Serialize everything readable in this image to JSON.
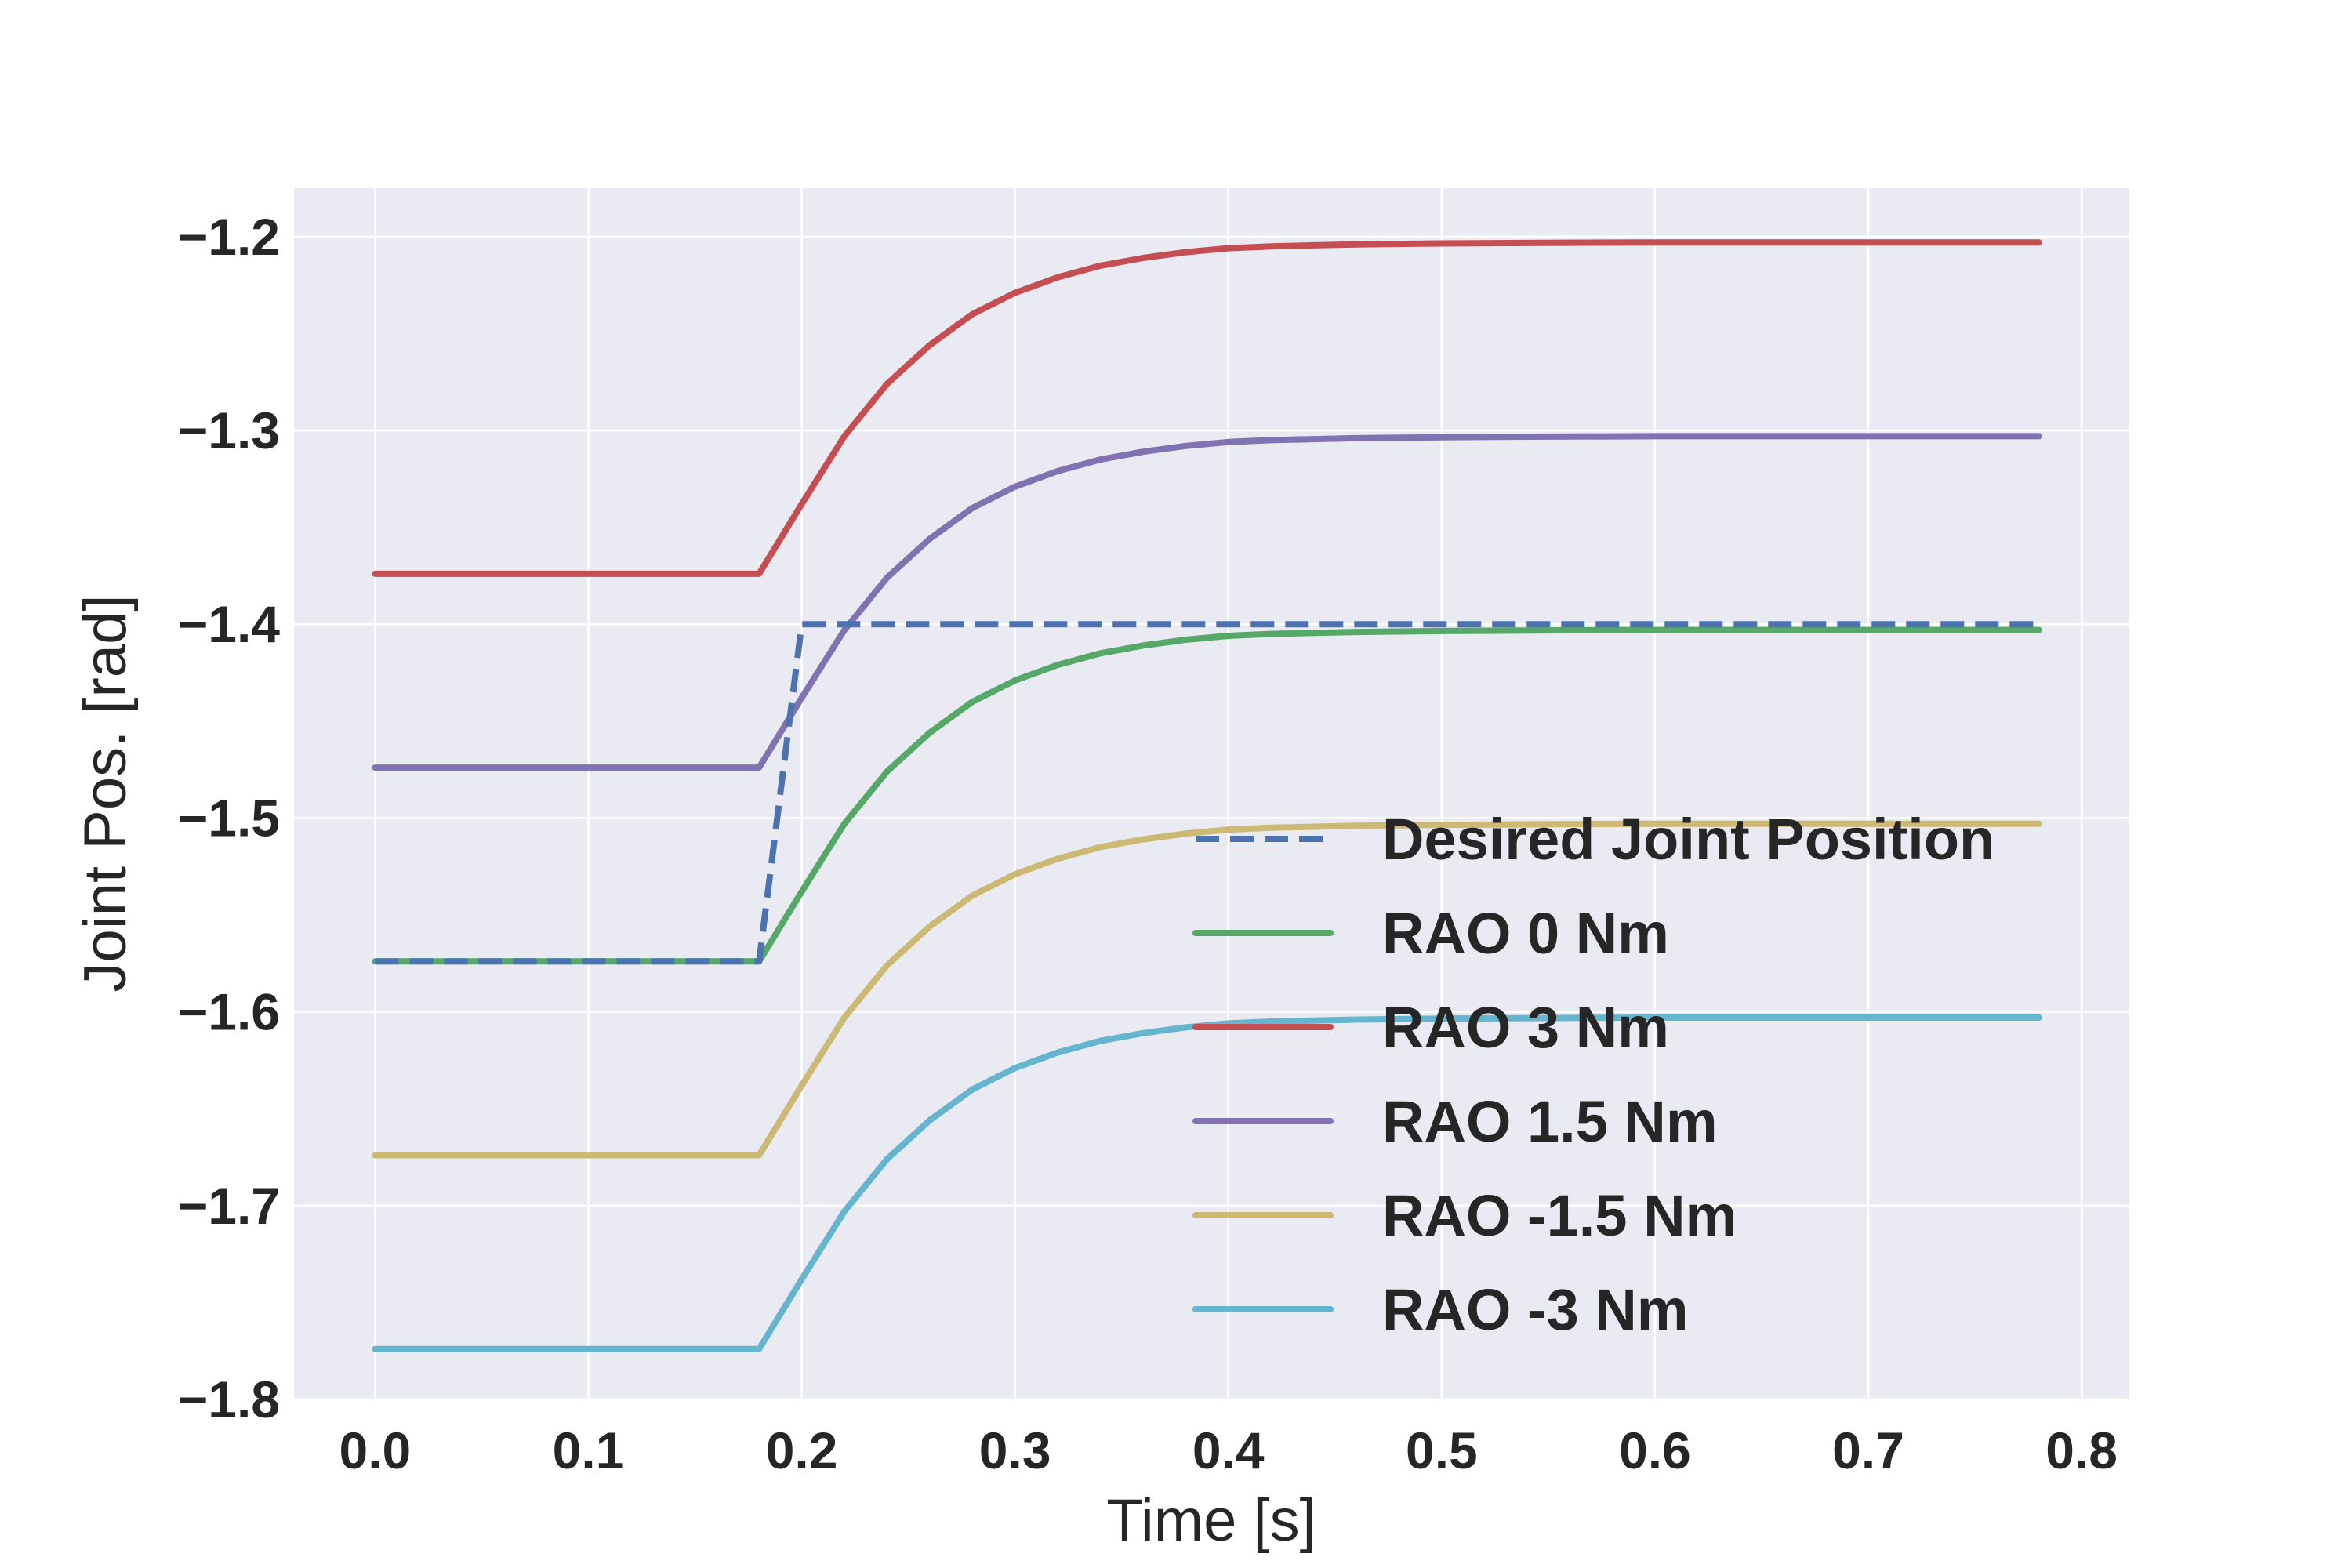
{
  "chart_data": {
    "type": "line",
    "title": "",
    "xlabel": "Time [s]",
    "ylabel": "Joint Pos. [rad]",
    "xlim": [
      -0.038,
      0.822
    ],
    "ylim": [
      -1.8,
      -1.175
    ],
    "xticks": [
      0.0,
      0.1,
      0.2,
      0.3,
      0.4,
      0.5,
      0.6,
      0.7,
      0.8
    ],
    "xtick_labels": [
      "0.0",
      "0.1",
      "0.2",
      "0.3",
      "0.4",
      "0.5",
      "0.6",
      "0.7",
      "0.8"
    ],
    "yticks": [
      -1.8,
      -1.7,
      -1.6,
      -1.5,
      -1.4,
      -1.3,
      -1.2
    ],
    "ytick_labels": [
      "−1.8",
      "−1.7",
      "−1.6",
      "−1.5",
      "−1.4",
      "−1.3",
      "−1.2"
    ],
    "grid": true,
    "background": "#eaeaf2",
    "legend_position": "lower-right",
    "series": [
      {
        "name": "Desired Joint Position",
        "color": "#4c72b0",
        "style": "dashed",
        "x": [
          0.0,
          0.18,
          0.2,
          0.78
        ],
        "y": [
          -1.574,
          -1.574,
          -1.4,
          -1.4
        ]
      },
      {
        "name": "RAO 0 Nm",
        "color": "#55a868",
        "style": "solid",
        "x": [
          0.0,
          0.18,
          0.2,
          0.22,
          0.24,
          0.26,
          0.28,
          0.3,
          0.32,
          0.34,
          0.36,
          0.38,
          0.4,
          0.42,
          0.44,
          0.46,
          0.5,
          0.55,
          0.6,
          0.65,
          0.7,
          0.78
        ],
        "y": [
          -1.574,
          -1.574,
          -1.538,
          -1.503,
          -1.476,
          -1.456,
          -1.44,
          -1.429,
          -1.421,
          -1.415,
          -1.411,
          -1.408,
          -1.406,
          -1.405,
          -1.4045,
          -1.404,
          -1.4035,
          -1.4032,
          -1.403,
          -1.403,
          -1.403,
          -1.403
        ]
      },
      {
        "name": "RAO 3 Nm",
        "color": "#c44e52",
        "style": "solid",
        "x": [
          0.0,
          0.18,
          0.2,
          0.22,
          0.24,
          0.26,
          0.28,
          0.3,
          0.32,
          0.34,
          0.36,
          0.38,
          0.4,
          0.42,
          0.44,
          0.46,
          0.5,
          0.55,
          0.6,
          0.65,
          0.7,
          0.78
        ],
        "y": [
          -1.374,
          -1.374,
          -1.338,
          -1.303,
          -1.276,
          -1.256,
          -1.24,
          -1.229,
          -1.221,
          -1.215,
          -1.211,
          -1.208,
          -1.206,
          -1.205,
          -1.2045,
          -1.204,
          -1.2035,
          -1.2032,
          -1.203,
          -1.203,
          -1.203,
          -1.203
        ]
      },
      {
        "name": "RAO 1.5 Nm",
        "color": "#8172b2",
        "style": "solid",
        "x": [
          0.0,
          0.18,
          0.2,
          0.22,
          0.24,
          0.26,
          0.28,
          0.3,
          0.32,
          0.34,
          0.36,
          0.38,
          0.4,
          0.42,
          0.44,
          0.46,
          0.5,
          0.55,
          0.6,
          0.65,
          0.7,
          0.78
        ],
        "y": [
          -1.474,
          -1.474,
          -1.438,
          -1.403,
          -1.376,
          -1.356,
          -1.34,
          -1.329,
          -1.321,
          -1.315,
          -1.311,
          -1.308,
          -1.306,
          -1.305,
          -1.3045,
          -1.304,
          -1.3035,
          -1.3032,
          -1.303,
          -1.303,
          -1.303,
          -1.303
        ]
      },
      {
        "name": "RAO -1.5 Nm",
        "color": "#ccb974",
        "style": "solid",
        "x": [
          0.0,
          0.18,
          0.2,
          0.22,
          0.24,
          0.26,
          0.28,
          0.3,
          0.32,
          0.34,
          0.36,
          0.38,
          0.4,
          0.42,
          0.44,
          0.46,
          0.5,
          0.55,
          0.6,
          0.65,
          0.7,
          0.78
        ],
        "y": [
          -1.674,
          -1.674,
          -1.638,
          -1.603,
          -1.576,
          -1.556,
          -1.54,
          -1.529,
          -1.521,
          -1.515,
          -1.511,
          -1.508,
          -1.506,
          -1.505,
          -1.5045,
          -1.504,
          -1.5035,
          -1.5032,
          -1.503,
          -1.503,
          -1.503,
          -1.503
        ]
      },
      {
        "name": "RAO -3 Nm",
        "color": "#64b5cd",
        "style": "solid",
        "x": [
          0.0,
          0.18,
          0.2,
          0.22,
          0.24,
          0.26,
          0.28,
          0.3,
          0.32,
          0.34,
          0.36,
          0.38,
          0.4,
          0.42,
          0.44,
          0.46,
          0.5,
          0.55,
          0.6,
          0.65,
          0.7,
          0.78
        ],
        "y": [
          -1.774,
          -1.774,
          -1.738,
          -1.703,
          -1.676,
          -1.656,
          -1.64,
          -1.629,
          -1.621,
          -1.615,
          -1.611,
          -1.608,
          -1.606,
          -1.605,
          -1.6045,
          -1.604,
          -1.6035,
          -1.6032,
          -1.603,
          -1.603,
          -1.603,
          -1.603
        ]
      }
    ]
  }
}
